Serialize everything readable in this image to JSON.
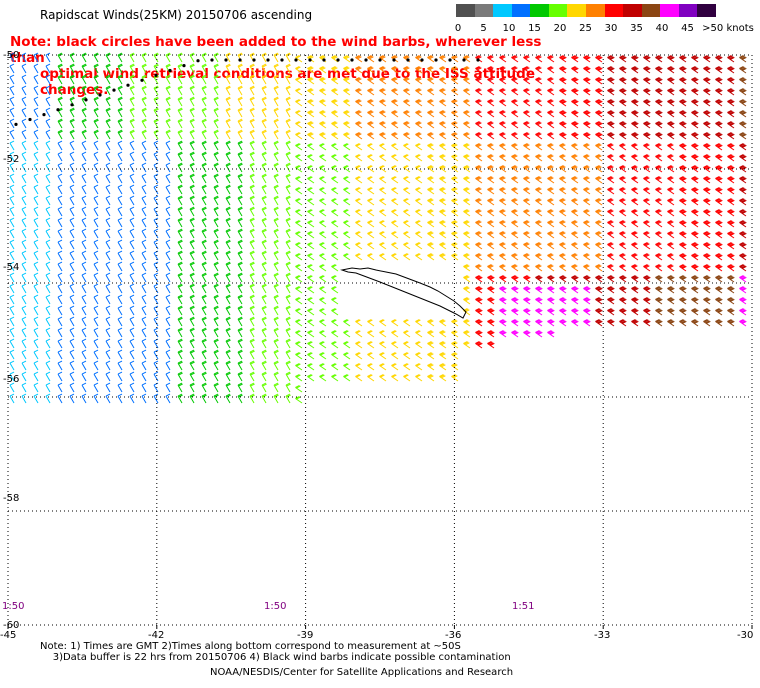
{
  "title": "Rapidscat Winds(25KM) 20150706 ascending",
  "note": {
    "line1": "Note: black circles have been added to the wind barbs, wherever less than",
    "line2": "optimal wind retrieval conditions are met due to the ISS attitude changes."
  },
  "scale": {
    "labels": [
      "0",
      "5",
      "10",
      "15",
      "20",
      "25",
      "30",
      "35",
      "40",
      "45",
      ">50 knots"
    ],
    "colors": [
      "#505050",
      "#7a7a7a",
      "#00c8ff",
      "#0070ff",
      "#00c800",
      "#66ff00",
      "#ffd700",
      "#ff8000",
      "#ff0000",
      "#c00000",
      "#8b4513",
      "#ff00ff",
      "#8000c0",
      "#300040"
    ]
  },
  "lat_labels": [
    "-50",
    "-52",
    "-54",
    "-56",
    "-58",
    "-60"
  ],
  "lon_labels": [
    "-45",
    "-42",
    "-39",
    "-36",
    "-33",
    "-30"
  ],
  "time_labels": [
    "1:50",
    "1:50",
    "1:51"
  ],
  "footer": {
    "line1": "Note: 1) Times are GMT 2)Times along bottom correspond to measurement at ~50S",
    "line2": "    3)Data buffer is 22 hrs from 20150706 4) Black wind barbs indicate possible contamination",
    "line3": "NOAA/NESDIS/Center for Satellite Applications and Research"
  },
  "map": {
    "lon_range": [
      -45,
      -30
    ],
    "lat_range": [
      -60,
      -50
    ],
    "grid": "dotted",
    "coastline": "South Georgia Island"
  }
}
